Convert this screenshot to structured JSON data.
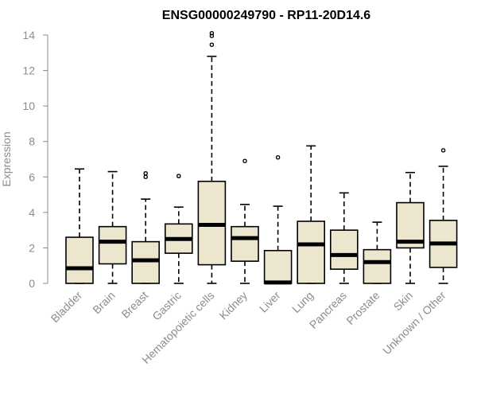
{
  "chart_data": {
    "type": "boxplot",
    "title": "ENSG00000249790 - RP11-20D14.6",
    "ylabel": "Expression",
    "xlabel": "",
    "ylim": [
      0,
      14
    ],
    "yticks": [
      0,
      2,
      4,
      6,
      8,
      10,
      12,
      14
    ],
    "box_color": "#ede6cf",
    "categories": [
      "Bladder",
      "Brain",
      "Breast",
      "Gastric",
      "Hematopoietic cells",
      "Kidney",
      "Liver",
      "Lung",
      "Pancreas",
      "Prostate",
      "Skin",
      "Unknown / Other"
    ],
    "series": [
      {
        "min": 0.0,
        "q1": 0.0,
        "median": 0.85,
        "q3": 2.6,
        "max": 6.45,
        "outliers": []
      },
      {
        "min": 0.0,
        "q1": 1.1,
        "median": 2.35,
        "q3": 3.2,
        "max": 6.3,
        "outliers": []
      },
      {
        "min": 0.0,
        "q1": 0.0,
        "median": 1.3,
        "q3": 2.35,
        "max": 4.75,
        "outliers": [
          6.0,
          6.2
        ]
      },
      {
        "min": 0.0,
        "q1": 1.7,
        "median": 2.5,
        "q3": 3.35,
        "max": 4.3,
        "outliers": [
          6.05
        ]
      },
      {
        "min": 0.0,
        "q1": 1.05,
        "median": 3.3,
        "q3": 5.75,
        "max": 12.8,
        "outliers": [
          13.45,
          13.95,
          14.1
        ]
      },
      {
        "min": 0.0,
        "q1": 1.25,
        "median": 2.55,
        "q3": 3.2,
        "max": 4.45,
        "outliers": [
          6.9
        ]
      },
      {
        "min": 0.0,
        "q1": 0.0,
        "median": 0.05,
        "q3": 1.85,
        "max": 4.35,
        "outliers": [
          7.1
        ]
      },
      {
        "min": 0.0,
        "q1": 0.0,
        "median": 2.2,
        "q3": 3.5,
        "max": 7.75,
        "outliers": []
      },
      {
        "min": 0.0,
        "q1": 0.8,
        "median": 1.6,
        "q3": 3.0,
        "max": 5.1,
        "outliers": []
      },
      {
        "min": 0.0,
        "q1": 0.0,
        "median": 1.2,
        "q3": 1.9,
        "max": 3.45,
        "outliers": []
      },
      {
        "min": 0.0,
        "q1": 2.0,
        "median": 2.35,
        "q3": 4.55,
        "max": 6.25,
        "outliers": []
      },
      {
        "min": 0.0,
        "q1": 0.9,
        "median": 2.25,
        "q3": 3.55,
        "max": 6.6,
        "outliers": [
          7.5
        ]
      }
    ],
    "grid": false,
    "legend": "none"
  }
}
